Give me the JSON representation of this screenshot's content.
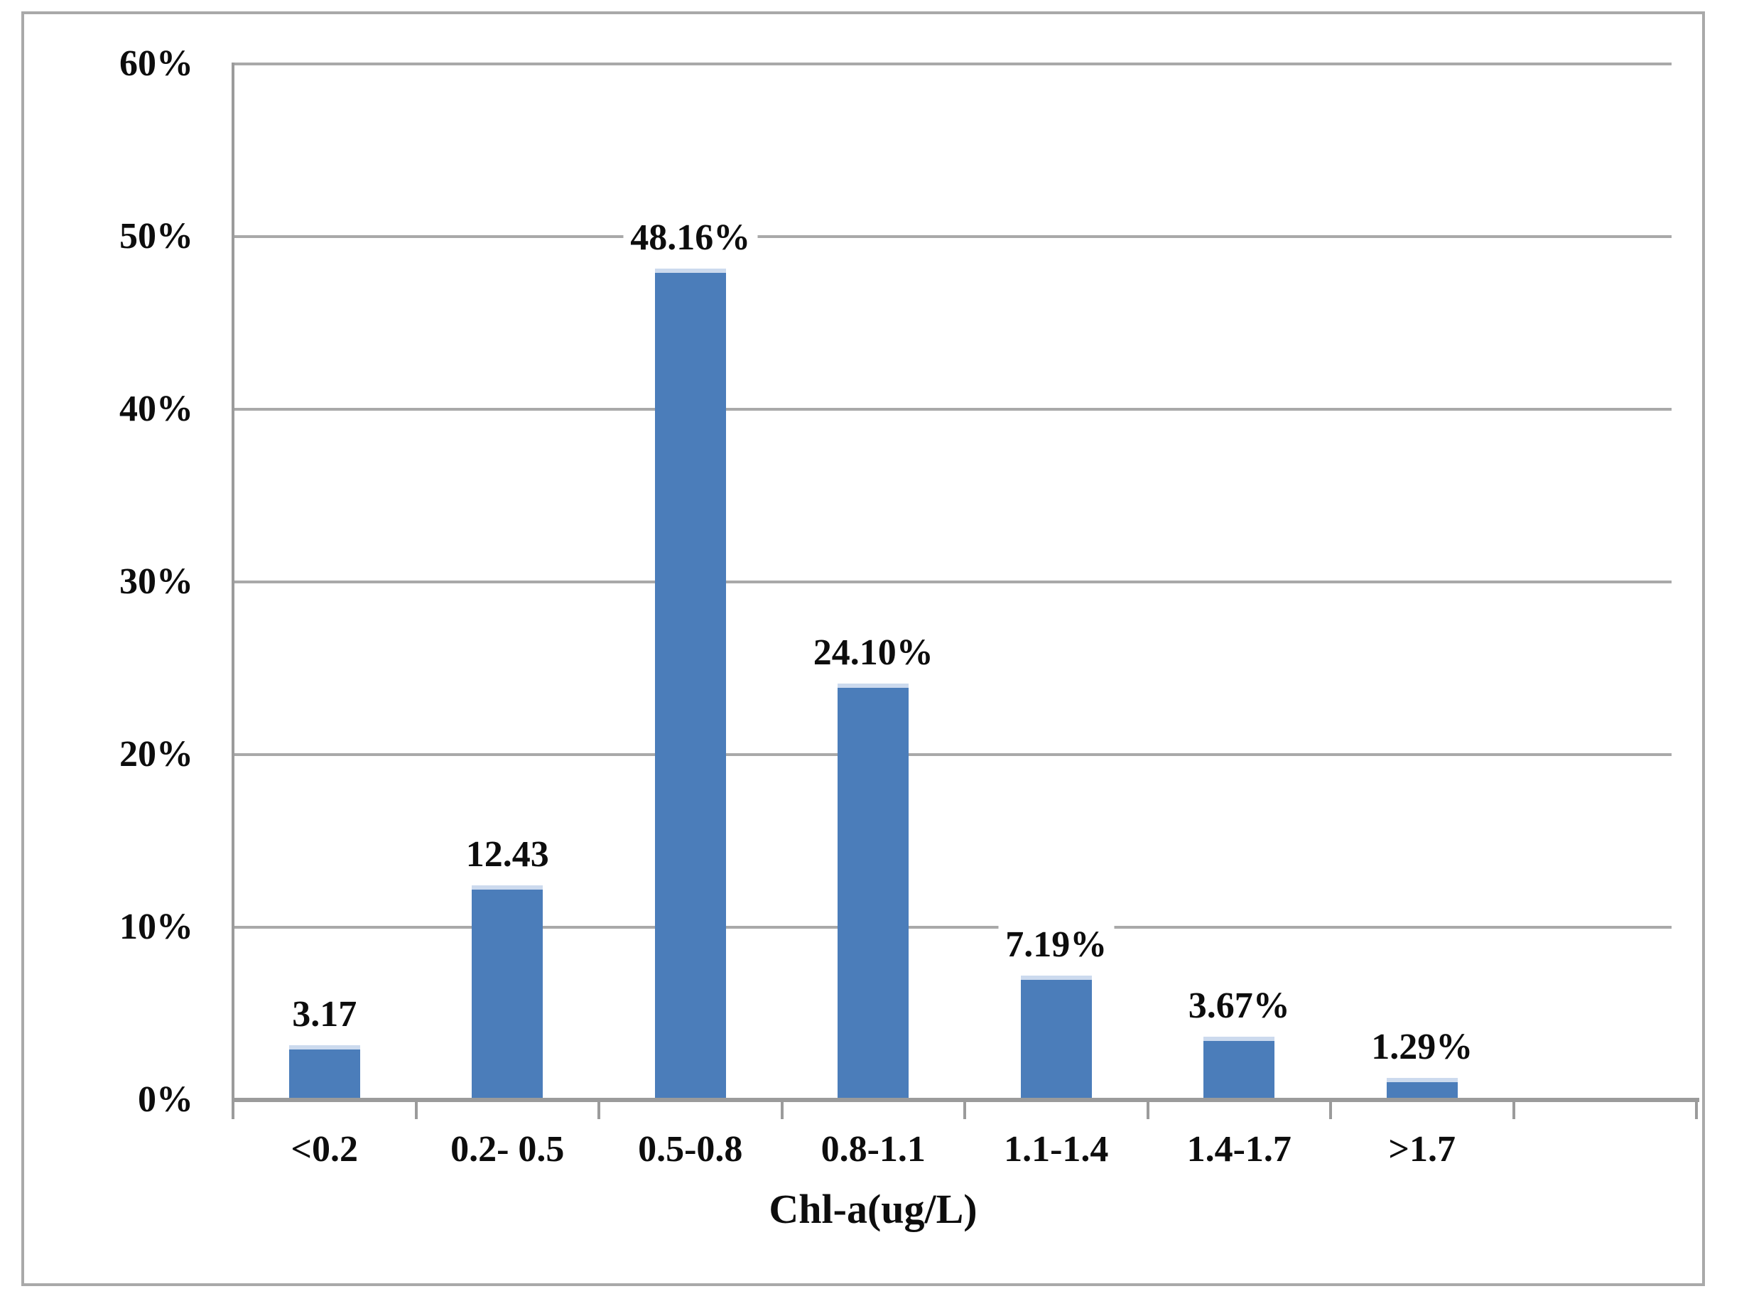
{
  "figure": {
    "background": "#ffffff",
    "border_color": "#a9a9a9"
  },
  "chart_data": {
    "type": "bar",
    "title": "",
    "xlabel": "Chl-a(ug/L)",
    "ylabel": "",
    "categories": [
      "<0.2",
      "0.2- 0.5",
      "0.5-0.8",
      "0.8-1.1",
      "1.1-1.4",
      "1.4-1.7",
      ">1.7"
    ],
    "values": [
      3.17,
      12.43,
      48.16,
      24.1,
      7.19,
      3.67,
      1.29
    ],
    "data_labels": [
      "3.17",
      "12.43",
      "48.16%",
      "24.10%",
      "7.19%",
      "3.67%",
      "1.29%"
    ],
    "y_tick_labels": [
      "60%",
      "50%",
      "40%",
      "30%",
      "20%",
      "10%",
      "0%"
    ],
    "y_tick_values": [
      60,
      50,
      40,
      30,
      20,
      10,
      0
    ],
    "ylim": [
      0,
      60
    ],
    "grid": true,
    "legend": false,
    "empty_trailing_slots": 1,
    "bar_color": "#4b7dba",
    "bar_top_highlight": "#ccdaee",
    "gridline_color": "#a9a9a9",
    "axis_color": "#9b9b9b",
    "label_color": "#0d0d0d"
  }
}
